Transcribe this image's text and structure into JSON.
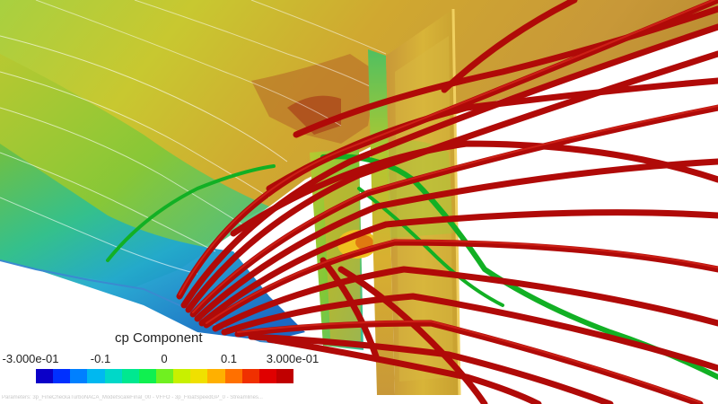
{
  "legend": {
    "title": "cp Component",
    "ticks": [
      {
        "label": "-3.000e-01"
      },
      {
        "label": "-0.1"
      },
      {
        "label": "0"
      },
      {
        "label": "0.1"
      },
      {
        "label": "3.000e-01"
      }
    ],
    "range": [
      -0.3,
      0.3
    ],
    "colors": [
      "#0b00c8",
      "#0030ff",
      "#0080ff",
      "#00b8f0",
      "#00d8c8",
      "#00e890",
      "#10f050",
      "#70f020",
      "#c8f000",
      "#f0e000",
      "#ffb000",
      "#ff7000",
      "#f03000",
      "#e00000",
      "#c00000"
    ]
  },
  "footer": {
    "text": "Parameters: 3p_FineCheckaTurboNACA_ModelScaleFinal_00 - VFFO - 3p_FloatSpeedGP_0 - Streamlines..."
  },
  "scene_colors": {
    "hull_red": "#a01800",
    "streamline_red": "#b00808",
    "streamline_green": "#10b020",
    "hull_green": "#60c040"
  }
}
